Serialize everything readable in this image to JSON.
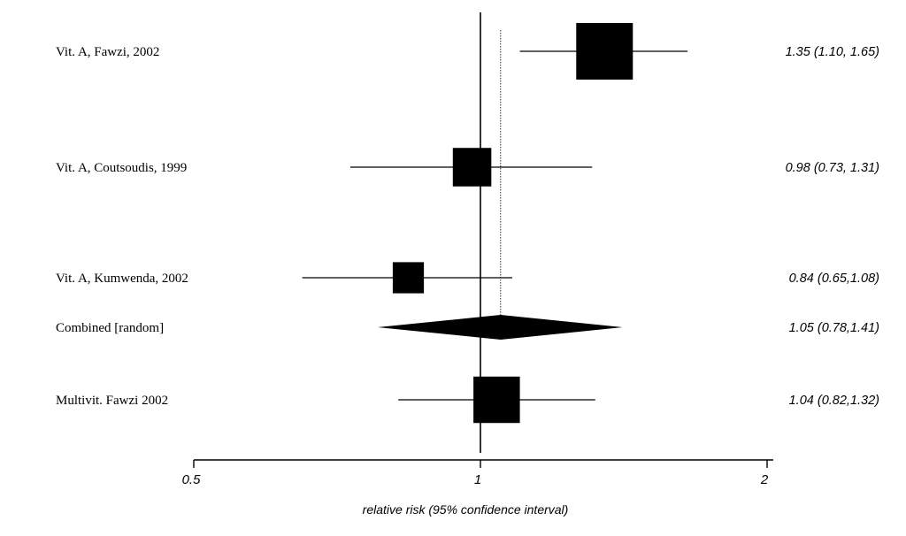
{
  "chart_data": {
    "type": "forest",
    "scale": "log",
    "xlim": [
      0.5,
      2
    ],
    "ticks": [
      {
        "value": 0.5,
        "label": "0.5"
      },
      {
        "value": 1,
        "label": "1"
      },
      {
        "value": 2,
        "label": "2"
      }
    ],
    "null_value": 1,
    "pooled_value": 1.05,
    "xlabel": "relative risk (95% confidence interval)",
    "rows": [
      {
        "label": "Vit. A, Fawzi, 2002",
        "estimate": 1.35,
        "ci_low": 1.1,
        "ci_high": 1.65,
        "text": "1.35 (1.10, 1.65)",
        "marker": "square",
        "weight": 1.0
      },
      {
        "label": "Vit. A, Coutsoudis, 1999",
        "estimate": 0.98,
        "ci_low": 0.73,
        "ci_high": 1.31,
        "text": "0.98 (0.73, 1.31)",
        "marker": "square",
        "weight": 0.68
      },
      {
        "label": "Vit. A, Kumwenda, 2002",
        "estimate": 0.84,
        "ci_low": 0.65,
        "ci_high": 1.08,
        "text": "0.84 (0.65,1.08)",
        "marker": "square",
        "weight": 0.55
      },
      {
        "label": "Combined [random]",
        "estimate": 1.05,
        "ci_low": 0.78,
        "ci_high": 1.41,
        "text": "1.05 (0.78,1.41)",
        "marker": "diamond"
      },
      {
        "label": "Multivit. Fawzi 2002",
        "estimate": 1.04,
        "ci_low": 0.82,
        "ci_high": 1.32,
        "text": "1.04 (0.82,1.32)",
        "marker": "square",
        "weight": 0.82
      }
    ]
  }
}
